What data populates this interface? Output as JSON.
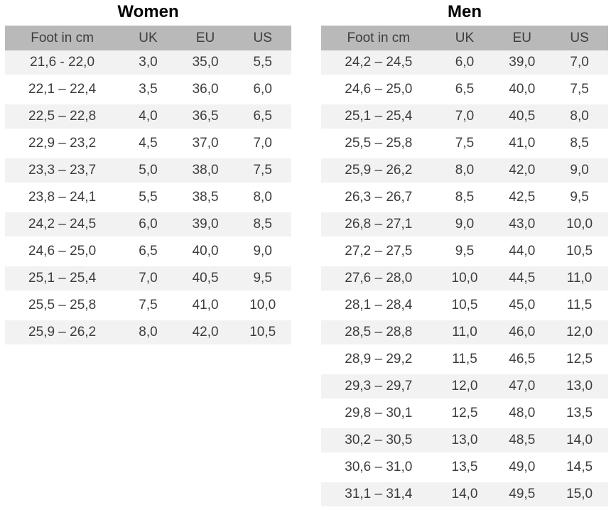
{
  "colors": {
    "header_bg": "#b9b9b9",
    "row_stripe": "#f2f2f2",
    "text": "#3d3d3d",
    "title": "#000000",
    "page_bg": "#ffffff"
  },
  "tables": [
    {
      "title": "Women",
      "headers": [
        "Foot in cm",
        "UK",
        "EU",
        "US"
      ],
      "rows": [
        [
          "21,6 - 22,0",
          "3,0",
          "35,0",
          "5,5"
        ],
        [
          "22,1 – 22,4",
          "3,5",
          "36,0",
          "6,0"
        ],
        [
          "22,5 – 22,8",
          "4,0",
          "36,5",
          "6,5"
        ],
        [
          "22,9 – 23,2",
          "4,5",
          "37,0",
          "7,0"
        ],
        [
          "23,3 – 23,7",
          "5,0",
          "38,0",
          "7,5"
        ],
        [
          "23,8 – 24,1",
          "5,5",
          "38,5",
          "8,0"
        ],
        [
          "24,2 – 24,5",
          "6,0",
          "39,0",
          "8,5"
        ],
        [
          "24,6 – 25,0",
          "6,5",
          "40,0",
          "9,0"
        ],
        [
          "25,1 – 25,4",
          "7,0",
          "40,5",
          "9,5"
        ],
        [
          "25,5 – 25,8",
          "7,5",
          "41,0",
          "10,0"
        ],
        [
          "25,9 – 26,2",
          "8,0",
          "42,0",
          "10,5"
        ]
      ]
    },
    {
      "title": "Men",
      "headers": [
        "Foot in cm",
        "UK",
        "EU",
        "US"
      ],
      "rows": [
        [
          "24,2 – 24,5",
          "6,0",
          "39,0",
          "7,0"
        ],
        [
          "24,6 – 25,0",
          "6,5",
          "40,0",
          "7,5"
        ],
        [
          "25,1 – 25,4",
          "7,0",
          "40,5",
          "8,0"
        ],
        [
          "25,5 – 25,8",
          "7,5",
          "41,0",
          "8,5"
        ],
        [
          "25,9 – 26,2",
          "8,0",
          "42,0",
          "9,0"
        ],
        [
          "26,3 – 26,7",
          "8,5",
          "42,5",
          "9,5"
        ],
        [
          "26,8 – 27,1",
          "9,0",
          "43,0",
          "10,0"
        ],
        [
          "27,2 – 27,5",
          "9,5",
          "44,0",
          "10,5"
        ],
        [
          "27,6 – 28,0",
          "10,0",
          "44,5",
          "11,0"
        ],
        [
          "28,1 – 28,4",
          "10,5",
          "45,0",
          "11,5"
        ],
        [
          "28,5 – 28,8",
          "11,0",
          "46,0",
          "12,0"
        ],
        [
          "28,9 – 29,2",
          "11,5",
          "46,5",
          "12,5"
        ],
        [
          "29,3 – 29,7",
          "12,0",
          "47,0",
          "13,0"
        ],
        [
          "29,8 – 30,1",
          "12,5",
          "48,0",
          "13,5"
        ],
        [
          "30,2 – 30,5",
          "13,0",
          "48,5",
          "14,0"
        ],
        [
          "30,6 – 31,0",
          "13,5",
          "49,0",
          "14,5"
        ],
        [
          "31,1 – 31,4",
          "14,0",
          "49,5",
          "15,0"
        ]
      ]
    }
  ]
}
